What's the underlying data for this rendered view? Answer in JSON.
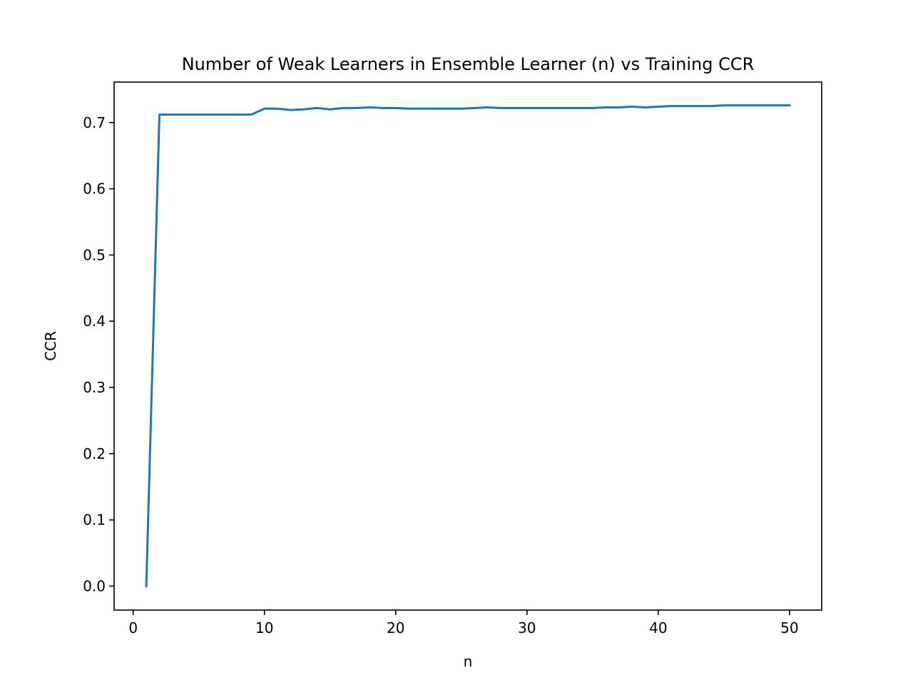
{
  "chart_data": {
    "type": "line",
    "title": "Number of Weak Learners in Ensemble Learner (n) vs Training CCR",
    "xlabel": "n",
    "ylabel": "CCR",
    "xlim": [
      -1.45,
      52.45
    ],
    "ylim": [
      -0.0362,
      0.7612
    ],
    "xticks": [
      0,
      10,
      20,
      30,
      40,
      50
    ],
    "xtick_labels": [
      "0",
      "10",
      "20",
      "30",
      "40",
      "50"
    ],
    "yticks": [
      0.0,
      0.1,
      0.2,
      0.3,
      0.4,
      0.5,
      0.6,
      0.7
    ],
    "ytick_labels": [
      "0.0",
      "0.1",
      "0.2",
      "0.3",
      "0.4",
      "0.5",
      "0.6",
      "0.7"
    ],
    "grid": false,
    "legend": "none",
    "series": [
      {
        "name": "Training CCR",
        "color": "#1f77b4",
        "x": [
          1,
          2,
          3,
          4,
          5,
          6,
          7,
          8,
          9,
          10,
          11,
          12,
          13,
          14,
          15,
          16,
          17,
          18,
          19,
          20,
          21,
          22,
          23,
          24,
          25,
          26,
          27,
          28,
          29,
          30,
          31,
          32,
          33,
          34,
          35,
          36,
          37,
          38,
          39,
          40,
          41,
          42,
          43,
          44,
          45,
          46,
          47,
          48,
          49,
          50
        ],
        "y": [
          0.0,
          0.712,
          0.712,
          0.712,
          0.712,
          0.712,
          0.712,
          0.712,
          0.712,
          0.721,
          0.721,
          0.719,
          0.72,
          0.722,
          0.72,
          0.722,
          0.722,
          0.723,
          0.722,
          0.722,
          0.721,
          0.721,
          0.721,
          0.721,
          0.721,
          0.722,
          0.723,
          0.722,
          0.722,
          0.722,
          0.722,
          0.722,
          0.722,
          0.722,
          0.722,
          0.723,
          0.723,
          0.724,
          0.723,
          0.724,
          0.725,
          0.725,
          0.725,
          0.725,
          0.726,
          0.726,
          0.726,
          0.726,
          0.726,
          0.726
        ]
      }
    ]
  }
}
